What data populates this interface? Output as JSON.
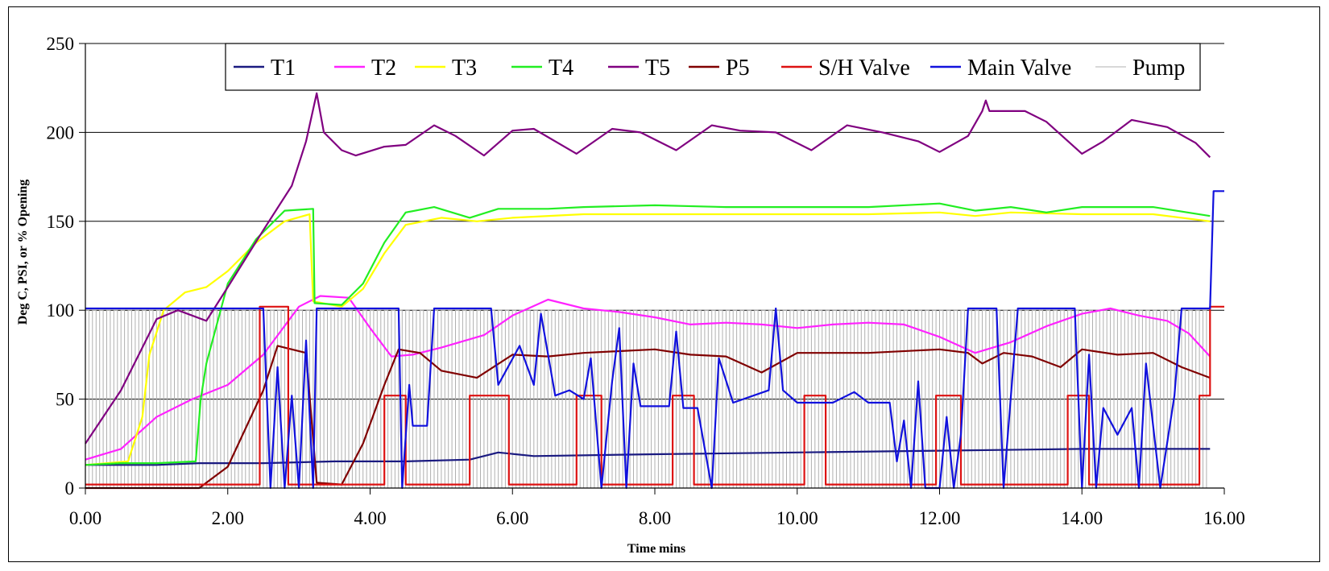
{
  "chart_data": {
    "type": "line",
    "xlabel": "Time mins",
    "ylabel": "Deg C, PSI, or % Opening",
    "xlim": [
      0,
      16
    ],
    "ylim": [
      0,
      250
    ],
    "x_ticks": [
      "0.00",
      "2.00",
      "4.00",
      "6.00",
      "8.00",
      "10.00",
      "12.00",
      "14.00",
      "16.00"
    ],
    "y_ticks": [
      "0",
      "50",
      "100",
      "150",
      "200",
      "250"
    ],
    "grid": "horizontal",
    "legend_position": "top",
    "series": [
      {
        "name": "T1",
        "color": "#1a1a80",
        "points": [
          [
            0,
            13
          ],
          [
            1,
            13
          ],
          [
            1.6,
            14
          ],
          [
            2.5,
            14
          ],
          [
            3.5,
            15
          ],
          [
            4.5,
            15
          ],
          [
            5.4,
            16
          ],
          [
            5.8,
            20
          ],
          [
            6.3,
            18
          ],
          [
            8,
            19
          ],
          [
            10,
            20
          ],
          [
            12,
            21
          ],
          [
            14,
            22
          ],
          [
            15.8,
            22
          ]
        ]
      },
      {
        "name": "T2",
        "color": "#ff22ff",
        "points": [
          [
            0,
            16
          ],
          [
            0.5,
            22
          ],
          [
            1,
            40
          ],
          [
            1.5,
            50
          ],
          [
            2,
            58
          ],
          [
            2.5,
            75
          ],
          [
            3,
            102
          ],
          [
            3.3,
            108
          ],
          [
            3.7,
            107
          ],
          [
            4,
            90
          ],
          [
            4.3,
            74
          ],
          [
            4.6,
            75
          ],
          [
            5,
            79
          ],
          [
            5.6,
            86
          ],
          [
            6,
            97
          ],
          [
            6.5,
            106
          ],
          [
            7,
            101
          ],
          [
            7.5,
            99
          ],
          [
            8,
            96
          ],
          [
            8.5,
            92
          ],
          [
            9,
            93
          ],
          [
            9.5,
            92
          ],
          [
            10,
            90
          ],
          [
            10.5,
            92
          ],
          [
            11,
            93
          ],
          [
            11.5,
            92
          ],
          [
            12,
            85
          ],
          [
            12.5,
            76
          ],
          [
            13,
            82
          ],
          [
            13.5,
            91
          ],
          [
            14,
            98
          ],
          [
            14.4,
            101
          ],
          [
            14.8,
            97
          ],
          [
            15.2,
            94
          ],
          [
            15.5,
            87
          ],
          [
            15.8,
            74
          ]
        ]
      },
      {
        "name": "T3",
        "color": "#ffff00",
        "points": [
          [
            0,
            13
          ],
          [
            0.6,
            15
          ],
          [
            0.8,
            40
          ],
          [
            0.9,
            75
          ],
          [
            1.1,
            100
          ],
          [
            1.4,
            110
          ],
          [
            1.7,
            113
          ],
          [
            2,
            122
          ],
          [
            2.4,
            138
          ],
          [
            2.8,
            150
          ],
          [
            3.15,
            154
          ],
          [
            3.2,
            105
          ],
          [
            3.6,
            102
          ],
          [
            3.9,
            112
          ],
          [
            4.2,
            132
          ],
          [
            4.5,
            148
          ],
          [
            5,
            152
          ],
          [
            5.5,
            150
          ],
          [
            6,
            152
          ],
          [
            7,
            154
          ],
          [
            8,
            154
          ],
          [
            9,
            154
          ],
          [
            10,
            154
          ],
          [
            11,
            154
          ],
          [
            12,
            155
          ],
          [
            12.5,
            153
          ],
          [
            13,
            155
          ],
          [
            14,
            154
          ],
          [
            15,
            154
          ],
          [
            15.8,
            150
          ]
        ]
      },
      {
        "name": "T4",
        "color": "#22ee22",
        "points": [
          [
            0,
            13
          ],
          [
            0.5,
            14
          ],
          [
            1,
            14
          ],
          [
            1.55,
            15
          ],
          [
            1.62,
            50
          ],
          [
            1.7,
            70
          ],
          [
            2,
            115
          ],
          [
            2.4,
            140
          ],
          [
            2.8,
            156
          ],
          [
            3.2,
            157
          ],
          [
            3.22,
            104
          ],
          [
            3.6,
            103
          ],
          [
            3.9,
            115
          ],
          [
            4.2,
            138
          ],
          [
            4.5,
            155
          ],
          [
            4.9,
            158
          ],
          [
            5.4,
            152
          ],
          [
            5.8,
            157
          ],
          [
            6.5,
            157
          ],
          [
            7,
            158
          ],
          [
            8,
            159
          ],
          [
            9,
            158
          ],
          [
            10,
            158
          ],
          [
            11,
            158
          ],
          [
            12,
            160
          ],
          [
            12.5,
            156
          ],
          [
            13,
            158
          ],
          [
            13.5,
            155
          ],
          [
            14,
            158
          ],
          [
            15,
            158
          ],
          [
            15.8,
            153
          ]
        ]
      },
      {
        "name": "T5",
        "color": "#800080",
        "points": [
          [
            0,
            25
          ],
          [
            0.5,
            55
          ],
          [
            1,
            95
          ],
          [
            1.3,
            100
          ],
          [
            1.7,
            94
          ],
          [
            2,
            113
          ],
          [
            2.5,
            145
          ],
          [
            2.9,
            170
          ],
          [
            3.1,
            195
          ],
          [
            3.25,
            222
          ],
          [
            3.35,
            200
          ],
          [
            3.6,
            190
          ],
          [
            3.8,
            187
          ],
          [
            4.2,
            192
          ],
          [
            4.5,
            193
          ],
          [
            4.9,
            204
          ],
          [
            5.2,
            198
          ],
          [
            5.6,
            187
          ],
          [
            6,
            201
          ],
          [
            6.3,
            202
          ],
          [
            6.9,
            188
          ],
          [
            7.4,
            202
          ],
          [
            7.8,
            200
          ],
          [
            8.3,
            190
          ],
          [
            8.8,
            204
          ],
          [
            9.2,
            201
          ],
          [
            9.7,
            200
          ],
          [
            10.2,
            190
          ],
          [
            10.7,
            204
          ],
          [
            11.2,
            200
          ],
          [
            11.7,
            195
          ],
          [
            12,
            189
          ],
          [
            12.4,
            198
          ],
          [
            12.6,
            212
          ],
          [
            12.65,
            218
          ],
          [
            12.7,
            212
          ],
          [
            13.2,
            212
          ],
          [
            13.5,
            206
          ],
          [
            14,
            188
          ],
          [
            14.3,
            195
          ],
          [
            14.7,
            207
          ],
          [
            15.2,
            203
          ],
          [
            15.6,
            194
          ],
          [
            15.8,
            186
          ]
        ]
      },
      {
        "name": "P5",
        "color": "#800000",
        "points": [
          [
            0,
            0
          ],
          [
            1.6,
            0
          ],
          [
            2,
            12
          ],
          [
            2.5,
            55
          ],
          [
            2.7,
            80
          ],
          [
            2.9,
            78
          ],
          [
            3.1,
            76
          ],
          [
            3.25,
            3
          ],
          [
            3.6,
            2
          ],
          [
            3.9,
            25
          ],
          [
            4.2,
            58
          ],
          [
            4.4,
            78
          ],
          [
            4.7,
            76
          ],
          [
            5,
            66
          ],
          [
            5.5,
            62
          ],
          [
            6,
            75
          ],
          [
            6.5,
            74
          ],
          [
            7,
            76
          ],
          [
            7.5,
            77
          ],
          [
            8,
            78
          ],
          [
            8.5,
            75
          ],
          [
            9,
            74
          ],
          [
            9.5,
            65
          ],
          [
            10,
            76
          ],
          [
            11,
            76
          ],
          [
            12,
            78
          ],
          [
            12.4,
            76
          ],
          [
            12.6,
            70
          ],
          [
            12.9,
            76
          ],
          [
            13.3,
            74
          ],
          [
            13.7,
            68
          ],
          [
            14,
            78
          ],
          [
            14.5,
            75
          ],
          [
            15,
            76
          ],
          [
            15.4,
            68
          ],
          [
            15.8,
            62
          ]
        ]
      },
      {
        "name": "S/H Valve",
        "color": "#dd1111",
        "points": [
          [
            0,
            2
          ],
          [
            2.45,
            2
          ],
          [
            2.45,
            102
          ],
          [
            2.85,
            102
          ],
          [
            2.85,
            2
          ],
          [
            4.2,
            2
          ],
          [
            4.2,
            52
          ],
          [
            4.5,
            52
          ],
          [
            4.5,
            2
          ],
          [
            5.4,
            2
          ],
          [
            5.4,
            52
          ],
          [
            5.95,
            52
          ],
          [
            5.95,
            2
          ],
          [
            6.9,
            2
          ],
          [
            6.9,
            52
          ],
          [
            7.25,
            52
          ],
          [
            7.25,
            2
          ],
          [
            8.25,
            2
          ],
          [
            8.25,
            52
          ],
          [
            8.55,
            52
          ],
          [
            8.55,
            2
          ],
          [
            10.1,
            2
          ],
          [
            10.1,
            52
          ],
          [
            10.4,
            52
          ],
          [
            10.4,
            2
          ],
          [
            11.95,
            2
          ],
          [
            11.95,
            52
          ],
          [
            12.3,
            52
          ],
          [
            12.3,
            2
          ],
          [
            13.8,
            2
          ],
          [
            13.8,
            52
          ],
          [
            14.1,
            52
          ],
          [
            14.1,
            2
          ],
          [
            15.65,
            2
          ],
          [
            15.65,
            52
          ],
          [
            15.8,
            52
          ],
          [
            15.8,
            102
          ],
          [
            16,
            102
          ]
        ]
      },
      {
        "name": "Main Valve",
        "color": "#1111dd",
        "points": [
          [
            0,
            101
          ],
          [
            2.5,
            101
          ],
          [
            2.6,
            0
          ],
          [
            2.7,
            68
          ],
          [
            2.8,
            0
          ],
          [
            2.9,
            52
          ],
          [
            3.0,
            0
          ],
          [
            3.1,
            83
          ],
          [
            3.2,
            0
          ],
          [
            3.25,
            101
          ],
          [
            4.4,
            101
          ],
          [
            4.45,
            0
          ],
          [
            4.55,
            58
          ],
          [
            4.6,
            35
          ],
          [
            4.8,
            35
          ],
          [
            4.9,
            101
          ],
          [
            5.7,
            101
          ],
          [
            5.8,
            58
          ],
          [
            6.1,
            80
          ],
          [
            6.3,
            58
          ],
          [
            6.4,
            98
          ],
          [
            6.6,
            52
          ],
          [
            6.8,
            55
          ],
          [
            7,
            50
          ],
          [
            7.1,
            73
          ],
          [
            7.25,
            0
          ],
          [
            7.4,
            60
          ],
          [
            7.5,
            90
          ],
          [
            7.6,
            0
          ],
          [
            7.7,
            70
          ],
          [
            7.8,
            46
          ],
          [
            8.2,
            46
          ],
          [
            8.3,
            88
          ],
          [
            8.4,
            45
          ],
          [
            8.6,
            45
          ],
          [
            8.8,
            0
          ],
          [
            8.9,
            73
          ],
          [
            9.1,
            48
          ],
          [
            9.6,
            55
          ],
          [
            9.7,
            101
          ],
          [
            9.8,
            55
          ],
          [
            10,
            48
          ],
          [
            10.5,
            48
          ],
          [
            10.8,
            54
          ],
          [
            11,
            48
          ],
          [
            11.3,
            48
          ],
          [
            11.4,
            15
          ],
          [
            11.5,
            38
          ],
          [
            11.6,
            0
          ],
          [
            11.7,
            60
          ],
          [
            11.8,
            0
          ],
          [
            12,
            0
          ],
          [
            12.1,
            40
          ],
          [
            12.2,
            0
          ],
          [
            12.3,
            30
          ],
          [
            12.4,
            101
          ],
          [
            12.8,
            101
          ],
          [
            12.9,
            0
          ],
          [
            13.1,
            101
          ],
          [
            13.9,
            101
          ],
          [
            14,
            0
          ],
          [
            14.1,
            75
          ],
          [
            14.2,
            0
          ],
          [
            14.3,
            45
          ],
          [
            14.5,
            30
          ],
          [
            14.7,
            45
          ],
          [
            14.8,
            0
          ],
          [
            14.9,
            70
          ],
          [
            15.1,
            0
          ],
          [
            15.3,
            52
          ],
          [
            15.4,
            101
          ],
          [
            15.8,
            101
          ],
          [
            15.85,
            167
          ],
          [
            16,
            167
          ]
        ]
      },
      {
        "name": "Pump",
        "color": "#b0b0b0",
        "type": "square-wave",
        "high": 100,
        "low": 0,
        "period_min": 0.1,
        "from": 0,
        "to": 15.8
      }
    ]
  }
}
